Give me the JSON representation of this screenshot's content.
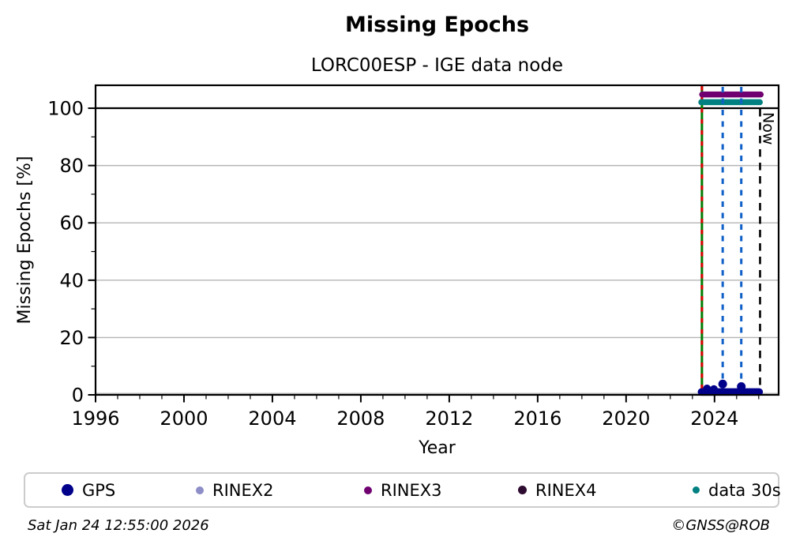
{
  "title": "Missing Epochs",
  "subtitle": "LORC00ESP - IGE data node",
  "footer": {
    "timestamp": "Sat Jan 24 12:55:00 2026",
    "copyright": "©GNSS@ROB"
  },
  "legend": [
    {
      "label": "GPS",
      "color": "#00008b",
      "size": 15
    },
    {
      "label": "RINEX2",
      "color": "#8d8dc8",
      "size": 10
    },
    {
      "label": "RINEX3",
      "color": "#700070",
      "size": 10
    },
    {
      "label": "RINEX4",
      "color": "#2e0b30",
      "size": 11
    },
    {
      "label": "data 30s",
      "color": "#008080",
      "size": 9
    }
  ],
  "chart_data": {
    "type": "scatter",
    "title": "Missing Epochs",
    "subtitle": "LORC00ESP - IGE data node",
    "xlabel": "Year",
    "ylabel": "Missing Epochs [%]",
    "xlim": [
      1996,
      2026.9
    ],
    "ylim": [
      0,
      108
    ],
    "xticks": [
      1996,
      2000,
      2004,
      2008,
      2012,
      2016,
      2020,
      2024
    ],
    "xminor_step": 1,
    "yticks": [
      0,
      20,
      40,
      60,
      80,
      100
    ],
    "yminor_step": 10,
    "grid": true,
    "grid_color": "#b4b4b4",
    "hline": {
      "y": 100,
      "color": "#000000"
    },
    "now_label": "Now",
    "gps": {
      "name": "GPS",
      "color": "#00008b",
      "band": {
        "x_start": 2023.41,
        "x_end": 2026.02,
        "y_pct": 1.0
      },
      "outliers": [
        {
          "x": 2023.66,
          "y": 2.2
        },
        {
          "x": 2023.97,
          "y": 2.0
        },
        {
          "x": 2024.37,
          "y": 3.8
        },
        {
          "x": 2025.21,
          "y": 2.9
        }
      ]
    },
    "bars": [
      {
        "name": "RINEX3",
        "y_pct": 104.8,
        "x_start": 2023.44,
        "x_end": 2026.09,
        "color": "#700070"
      },
      {
        "name": "data 30s",
        "y_pct": 102.1,
        "x_start": 2023.4,
        "x_end": 2026.05,
        "color": "#008080"
      }
    ],
    "vlines": [
      {
        "x": 2023.43,
        "type": "event",
        "colors": [
          "#007c00",
          "#dc0000"
        ]
      },
      {
        "x": 2024.37,
        "type": "missing",
        "color": "#1060c8"
      },
      {
        "x": 2025.21,
        "type": "missing",
        "color": "#1060c8"
      },
      {
        "x": 2026.06,
        "type": "now",
        "color": "#000000",
        "label": "Now"
      }
    ]
  }
}
